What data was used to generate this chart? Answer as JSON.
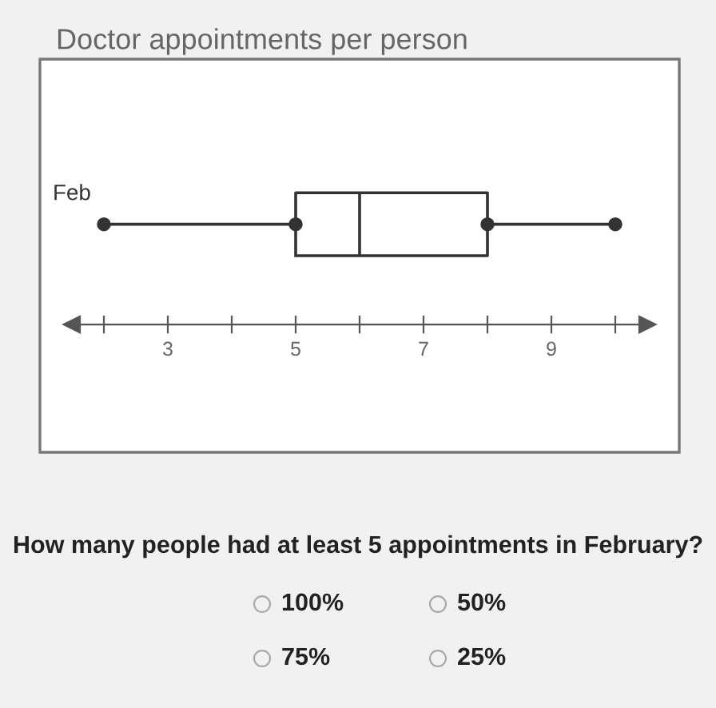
{
  "chart_data": {
    "type": "box",
    "title": "Doctor appointments per person",
    "categories": [
      "Feb"
    ],
    "boxes": [
      {
        "low": 2,
        "q1": 5,
        "median": 6,
        "q3": 8,
        "high": 10
      }
    ],
    "series": [
      {
        "type": "scatter",
        "x": [
          "Feb",
          "Feb",
          "Feb",
          "Feb"
        ],
        "values": [
          2,
          5,
          8,
          10
        ],
        "color": "#333333",
        "marker": "circle"
      }
    ],
    "orientation": "horizontal",
    "xlim": [
      1,
      11
    ],
    "xticks": [
      {
        "value": 2,
        "label": null
      },
      3,
      {
        "value": 4,
        "label": null
      },
      5,
      {
        "value": 6,
        "label": null
      },
      7,
      {
        "value": 8,
        "label": null
      },
      9,
      {
        "value": 10,
        "label": null
      }
    ],
    "tick_labels": "x",
    "grid": false,
    "annotations": [
      "How many people had at least 5 appointments in February?",
      "100%",
      "50%",
      "75%",
      "25%"
    ]
  }
}
